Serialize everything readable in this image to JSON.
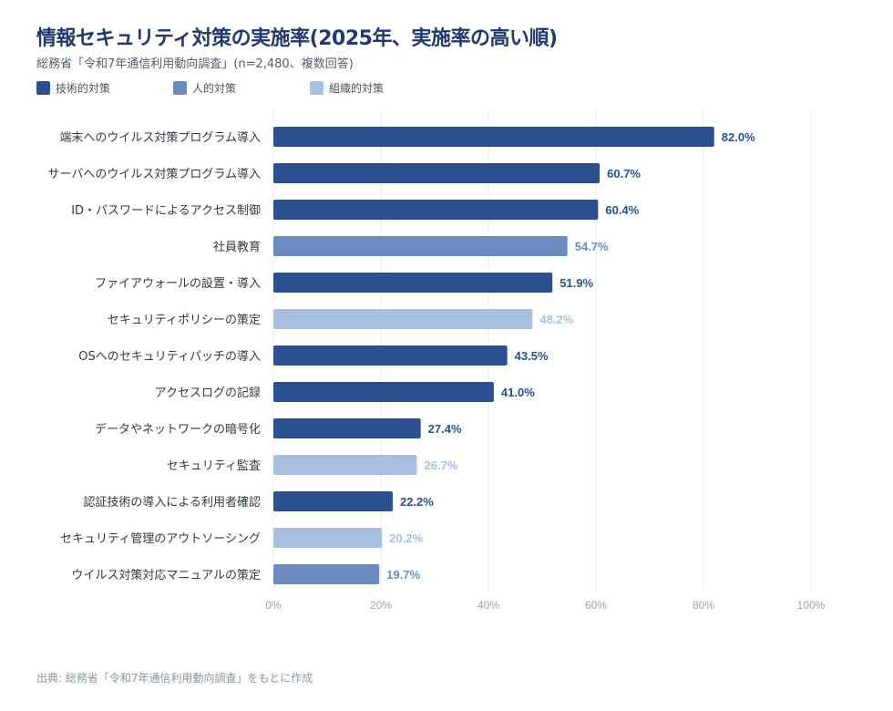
{
  "title": "情報セキュリティ対策の実施率(2025年、実施率の高い順)",
  "subtitle": "総務省「令和7年通信利用動向調査」(n=2,480、複数回答)",
  "source": "出典: 総務省「令和7年通信利用動向調査」をもとに作成",
  "colors": {
    "技術的対策": "#2c4f8f",
    "人的対策": "#6b8cc0",
    "組織的対策": "#aac0e0",
    "grid": "#e8ebf0",
    "tick": "#9aa3b2",
    "label": "#333a45"
  },
  "chart_data": {
    "type": "bar",
    "orientation": "horizontal",
    "title": "情報セキュリティ対策の実施率(2025年、実施率の高い順)",
    "legend": [
      "技術的対策",
      "人的対策",
      "組織的対策"
    ],
    "legend_placement": "top-left",
    "categories": [
      "端末へのウイルス対策プログラム導入",
      "サーバへのウイルス対策プログラム導入",
      "ID・パスワードによるアクセス制御",
      "社員教育",
      "ファイアウォールの設置・導入",
      "セキュリティポリシーの策定",
      "OSへのセキュリティパッチの導入",
      "アクセスログの記録",
      "データやネットワークの暗号化",
      "セキュリティ監査",
      "認証技術の導入による利用者確認",
      "セキュリティ管理のアウトソーシング",
      "ウイルス対策対応マニュアルの策定"
    ],
    "values": [
      82.0,
      60.7,
      60.4,
      54.7,
      51.9,
      48.2,
      43.5,
      41.0,
      27.4,
      26.7,
      22.2,
      20.2,
      19.7
    ],
    "groups": [
      "技術的対策",
      "技術的対策",
      "技術的対策",
      "人的対策",
      "技術的対策",
      "組織的対策",
      "技術的対策",
      "技術的対策",
      "技術的対策",
      "組織的対策",
      "技術的対策",
      "組織的対策",
      "人的対策"
    ],
    "value_labels": [
      "82.0%",
      "60.7%",
      "60.4%",
      "54.7%",
      "51.9%",
      "48.2%",
      "43.5%",
      "41.0%",
      "27.4%",
      "26.7%",
      "22.2%",
      "20.2%",
      "19.7%"
    ],
    "xlim": [
      0,
      100
    ],
    "xticks": [
      0,
      20,
      40,
      60,
      80,
      100
    ],
    "xtick_labels": [
      "0%",
      "20%",
      "40%",
      "60%",
      "80%",
      "100%"
    ],
    "grid": true
  }
}
